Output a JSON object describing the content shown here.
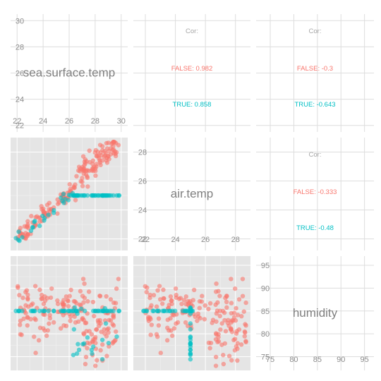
{
  "colors": {
    "false_series": "#F8766D",
    "true_series": "#00BFC4",
    "panel_bg": "#E5E5E5",
    "grid": "#FFFFFF",
    "blank_grid": "#DDDDDD",
    "label_text": "#7F7F7F",
    "tick_text": "#8C8C8C"
  },
  "chart_data": {
    "type": "scatter",
    "title": "",
    "variables": [
      "sea.surface.temp",
      "air.temp",
      "humidity"
    ],
    "groups": [
      "FALSE",
      "TRUE"
    ],
    "tick_labels": {
      "sea_surface_temp": [
        "22",
        "24",
        "26",
        "28",
        "30"
      ],
      "air_temp": [
        "22",
        "24",
        "26",
        "28"
      ],
      "humidity": [
        "75",
        "80",
        "85",
        "90",
        "95"
      ]
    },
    "ranges": {
      "sea_surface_temp": [
        21.5,
        30.5
      ],
      "air_temp": [
        21.2,
        29.0
      ],
      "humidity": [
        72.0,
        97.0
      ]
    },
    "grid": true,
    "correlations": [
      {
        "pair": "sea.surface.temp / air.temp",
        "header": "Cor:",
        "false_label": "FALSE: 0.982",
        "true_label": "TRUE: 0.858"
      },
      {
        "pair": "sea.surface.temp / humidity",
        "header": "Cor:",
        "false_label": "FALSE: -0.3",
        "true_label": "TRUE: -0.643"
      },
      {
        "pair": "air.temp / humidity",
        "header": "Cor:",
        "false_label": "FALSE: -0.333",
        "true_label": "TRUE: -0.48"
      }
    ],
    "points_per_group": {
      "FALSE": 180,
      "TRUE": 70
    }
  }
}
